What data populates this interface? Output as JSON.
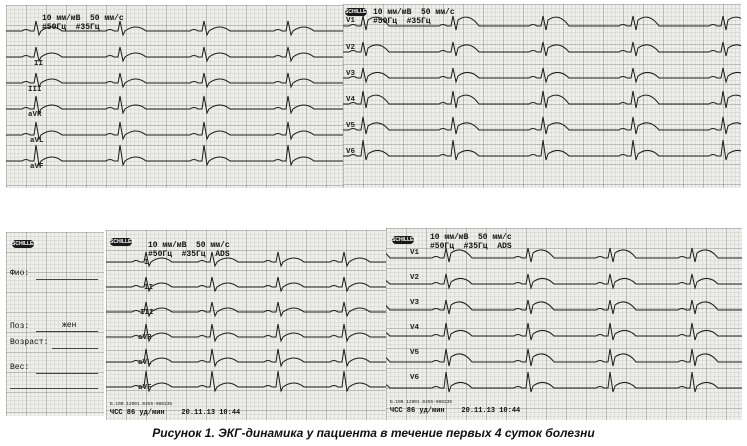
{
  "figure": {
    "caption": "Рисунок 1. ЭКГ-динамика у пациента в течение первых 4 суток болезни",
    "logo_text": "SCHILLER"
  },
  "panels": {
    "top_left": {
      "header": "10 мм/мВ  50 мм/с\n#50Гц  #35Гц",
      "leads": [
        "II",
        "III",
        "aVR",
        "aVL",
        "aVF"
      ]
    },
    "top_right": {
      "header": "10 мм/мВ  50 мм/с\n#50Гц  #35Гц",
      "leads": [
        "V1",
        "V2",
        "V3",
        "V4",
        "V5",
        "V6"
      ]
    },
    "bottom_form": {
      "fields": [
        "Фио:",
        "Поз:",
        "Возраст:",
        "Вес:"
      ],
      "value_sex": "жен"
    },
    "bottom_mid": {
      "header": "10 мм/мВ  50 мм/с\n#50Гц  #35Гц  ADS",
      "leads": [
        "I",
        "II",
        "III",
        "aVR",
        "aVL",
        "aVF"
      ],
      "footer_id": "Б.100.12001.0455-008235",
      "footer": "ЧСС 86 уд/мин    20.11.13 10:44"
    },
    "bottom_right": {
      "header": "10 мм/мВ  50 мм/с\n#50Гц  #35Гц  ADS",
      "leads": [
        "V1",
        "V2",
        "V3",
        "V4",
        "V5",
        "V6"
      ],
      "footer_id": "Б.100.12001.0455-008235",
      "footer": "ЧСС 86 уд/мин    20.11.13 10:44"
    }
  }
}
